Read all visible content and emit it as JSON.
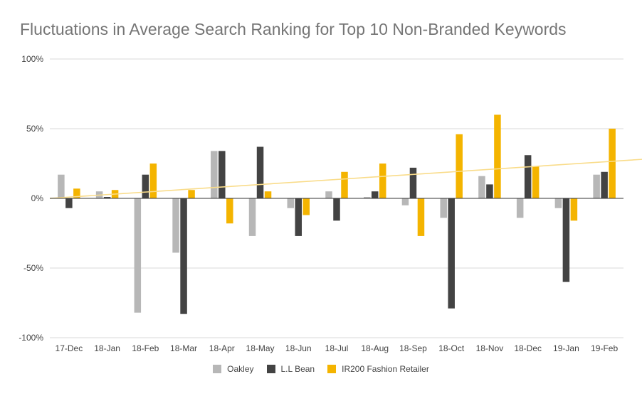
{
  "chart_data": {
    "type": "bar",
    "title": "Fluctuations in Average Search Ranking for Top 10 Non-Branded Keywords",
    "xlabel": "",
    "ylabel": "",
    "ylim": [
      -100,
      100
    ],
    "yticks": [
      {
        "value": 100,
        "label": "100%"
      },
      {
        "value": 50,
        "label": "50%"
      },
      {
        "value": 0,
        "label": "0%"
      },
      {
        "value": -50,
        "label": "-50%"
      },
      {
        "value": -100,
        "label": "-100%"
      }
    ],
    "categories": [
      "17-Dec",
      "18-Jan",
      "18-Feb",
      "18-Mar",
      "18-Apr",
      "18-May",
      "18-Jun",
      "18-Jul",
      "18-Aug",
      "18-Sep",
      "18-Oct",
      "18-Nov",
      "18-Dec",
      "19-Jan",
      "19-Feb"
    ],
    "series": [
      {
        "name": "Oakley",
        "color": "#b7b7b7",
        "values": [
          17,
          5,
          -82,
          -39,
          34,
          -27,
          -7,
          5,
          1,
          -5,
          -14,
          16,
          -14,
          -7,
          17
        ]
      },
      {
        "name": "L.L Bean",
        "color": "#434343",
        "values": [
          -7,
          1,
          17,
          -83,
          34,
          37,
          -27,
          -16,
          5,
          22,
          -79,
          10,
          31,
          -60,
          19
        ]
      },
      {
        "name": "IR200 Fashion Retailer",
        "color": "#f4b400",
        "values": [
          7,
          6,
          25,
          6,
          -18,
          5,
          -12,
          19,
          25,
          -27,
          46,
          60,
          23,
          -16,
          50
        ]
      }
    ],
    "trendline": {
      "series": "IR200 Fashion Retailer",
      "color": "#f9dc8a",
      "start": 0,
      "end": 28
    },
    "grid": true,
    "legend": "bottom"
  }
}
